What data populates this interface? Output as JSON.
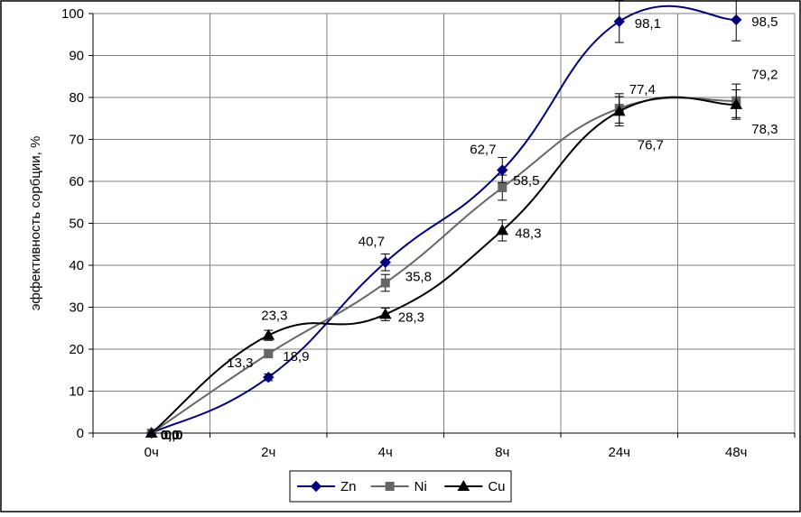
{
  "chart_data": {
    "type": "line",
    "ylabel": "эффективность сорбции, %",
    "categories": [
      "0ч",
      "2ч",
      "4ч",
      "8ч",
      "24ч",
      "48ч"
    ],
    "ylim": [
      0,
      100
    ],
    "yticks": [
      "0",
      "10",
      "20",
      "30",
      "40",
      "50",
      "60",
      "70",
      "80",
      "90",
      "100"
    ],
    "grid": true,
    "legend_position": "bottom",
    "series": [
      {
        "name": "Zn",
        "color": "#000080",
        "marker": "diamond",
        "values": [
          0.0,
          13.3,
          40.7,
          62.7,
          98.1,
          98.5
        ],
        "labels": [
          "0,0",
          "13,3",
          "40,7",
          "62,7",
          "98,1",
          "98,5"
        ],
        "errors": [
          0,
          0.8,
          2.0,
          3.0,
          5.0,
          5.0
        ]
      },
      {
        "name": "Ni",
        "color": "#666666",
        "marker": "square",
        "values": [
          0.0,
          18.9,
          35.8,
          58.5,
          77.4,
          79.2
        ],
        "labels": [
          "0,0",
          "18,9",
          "35,8",
          "58,5",
          "77,4",
          "79,2"
        ],
        "errors": [
          0,
          0.8,
          2.0,
          3.0,
          3.5,
          4.0
        ]
      },
      {
        "name": "Cu",
        "color": "#000000",
        "marker": "triangle",
        "values": [
          0.0,
          23.3,
          28.3,
          48.3,
          76.7,
          78.3
        ],
        "labels": [
          "0,0",
          "23,3",
          "28,3",
          "48,3",
          "76,7",
          "78,3"
        ],
        "errors": [
          0,
          1.2,
          1.5,
          2.5,
          3.5,
          3.5
        ]
      }
    ]
  }
}
